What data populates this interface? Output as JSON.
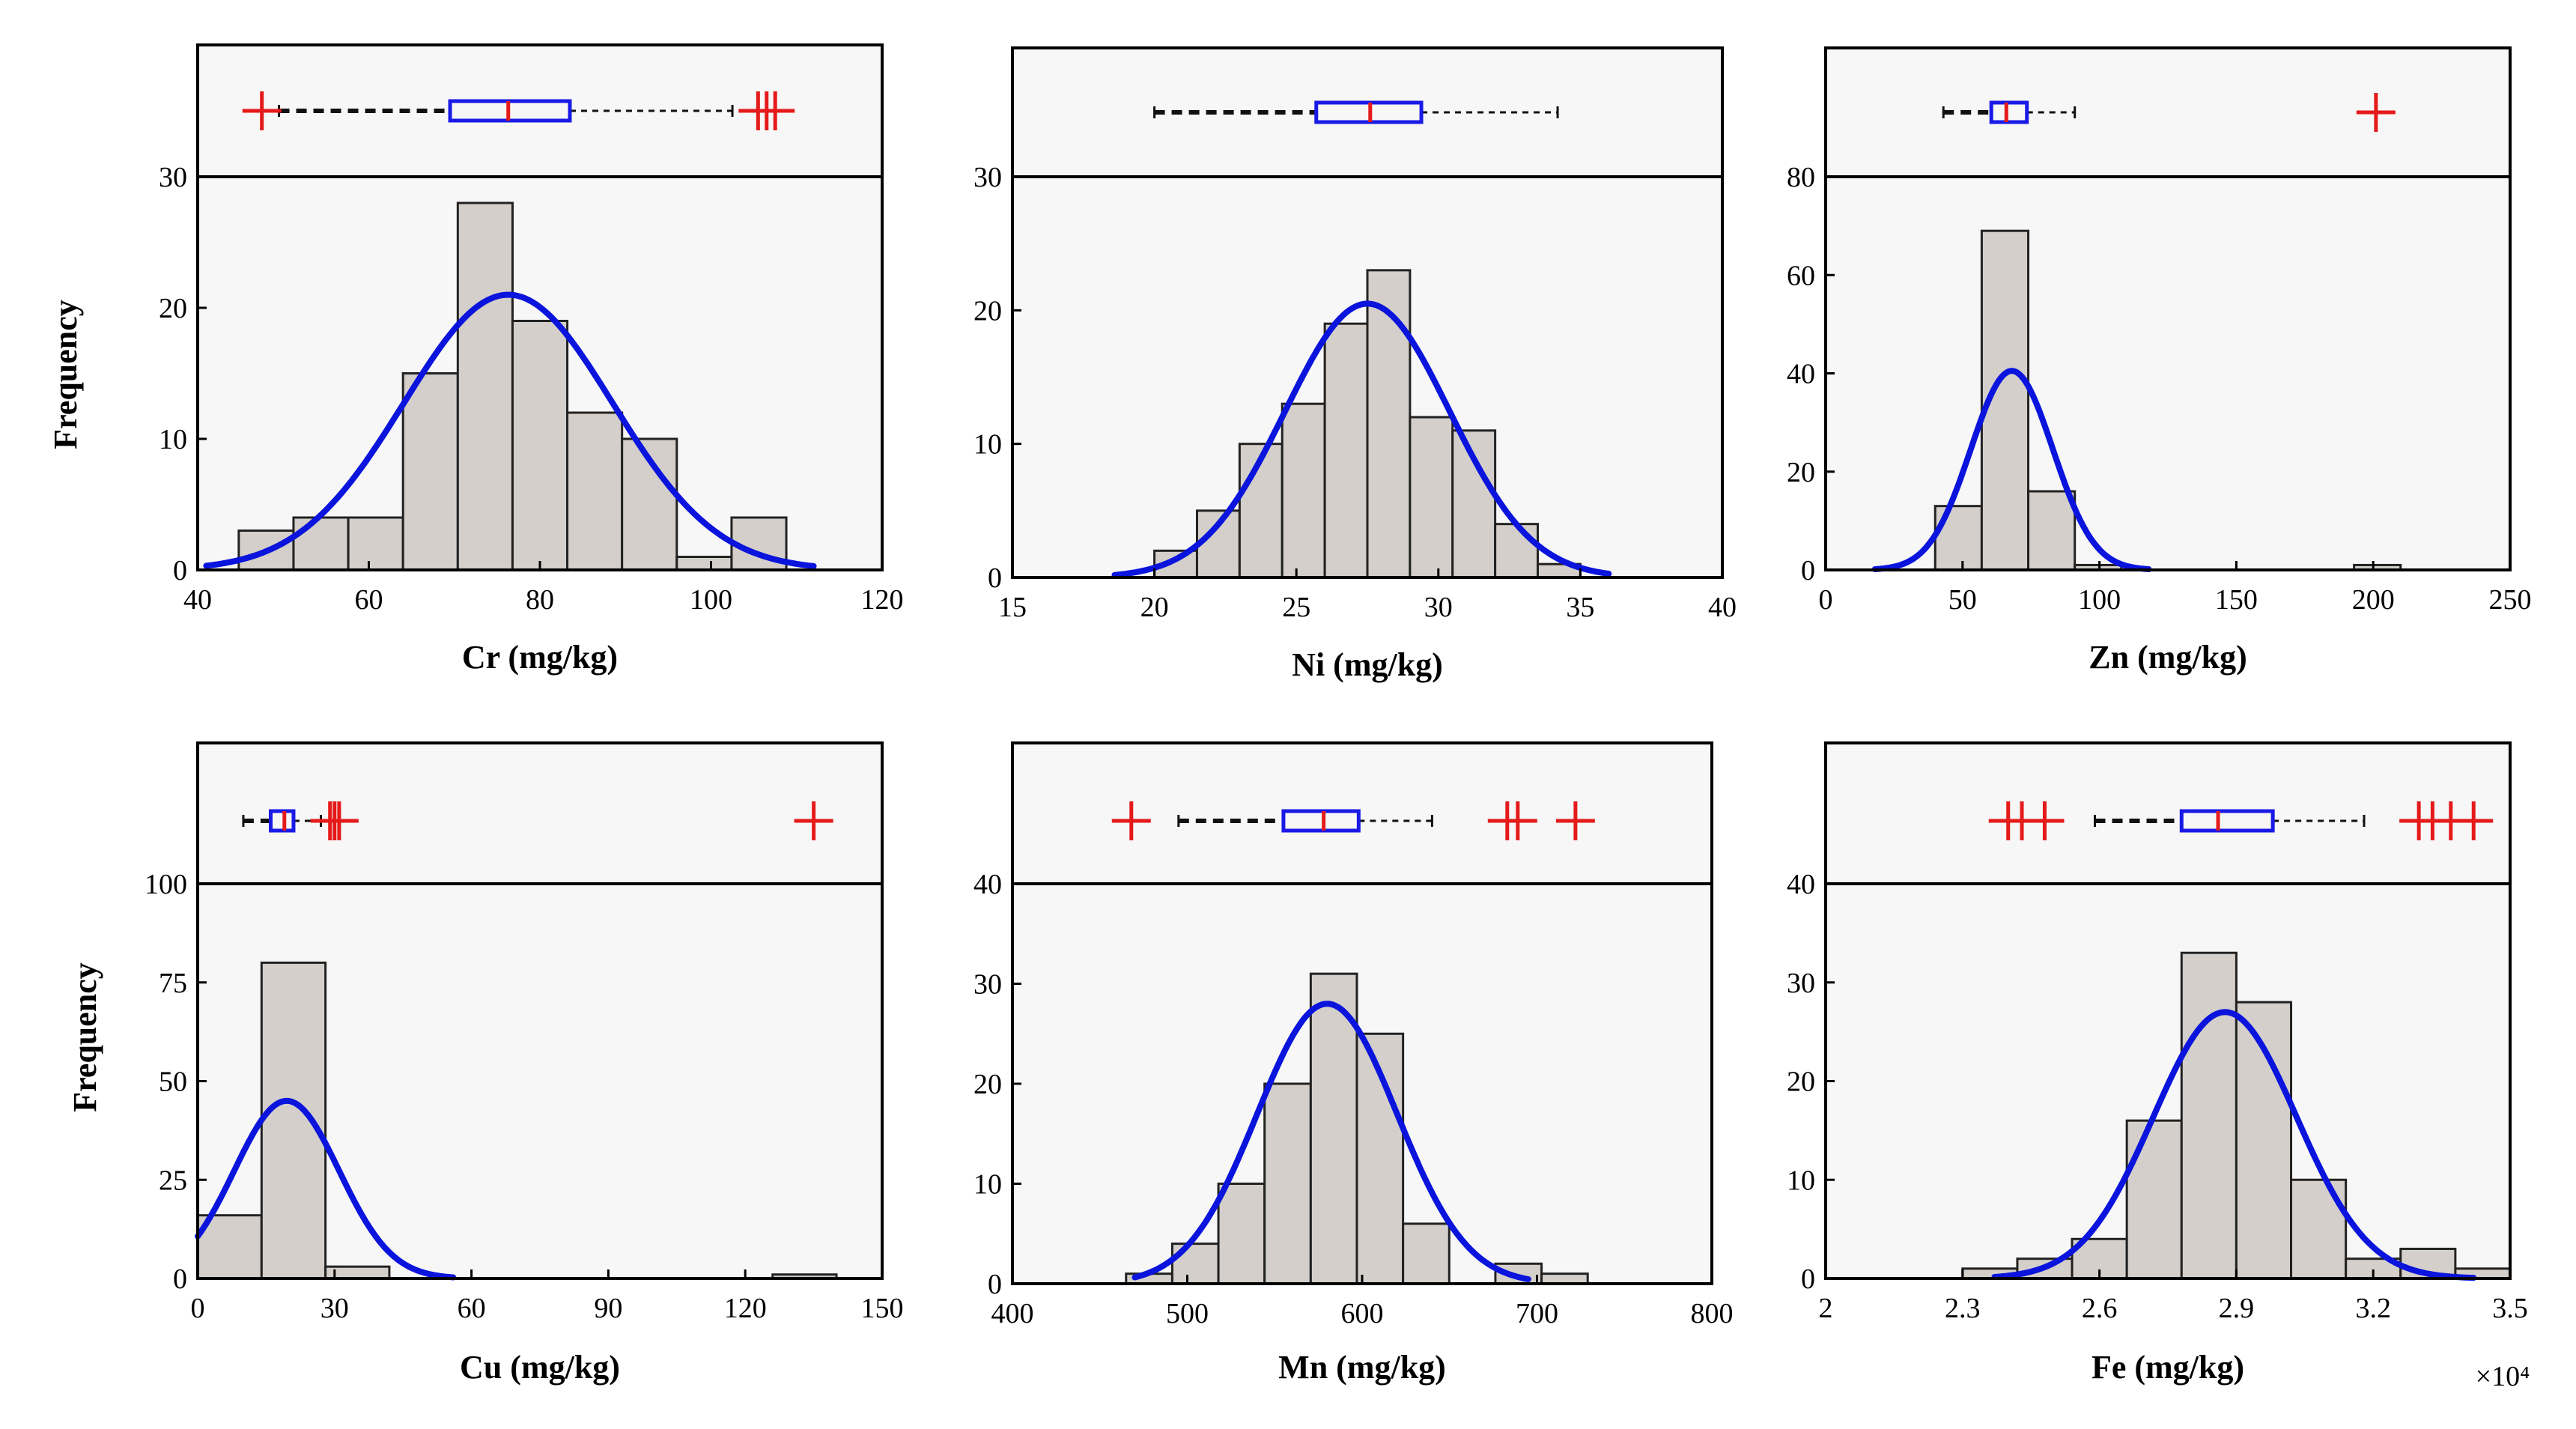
{
  "figure": {
    "y_axis_label": "Frequency",
    "exponent_note": "×10⁴"
  },
  "colors": {
    "bar_fill": "#d4cfca",
    "bar_edge": "#222222",
    "curve": "#0a14dc",
    "box": "#1a1ae6",
    "median": "#e51a1a",
    "outlier": "#e51a1a",
    "panel_bg": "#f7f7f7",
    "whisker": "#111111"
  },
  "chart_data": [
    {
      "type": "bar",
      "xlabel": "Cr (mg/kg)",
      "ylabel": "Frequency",
      "xlim": [
        40,
        120
      ],
      "ylim": [
        0,
        30
      ],
      "xticks": [
        40,
        60,
        80,
        100,
        120
      ],
      "xtick_labels": [
        "40",
        "60",
        "80",
        "100",
        "120"
      ],
      "yticks": [
        0,
        10,
        20,
        30
      ],
      "ytick_labels": [
        "0",
        "10",
        "20",
        "30"
      ],
      "bin_edges": [
        44.8,
        51.2,
        57.6,
        64.0,
        70.4,
        76.8,
        83.2,
        89.6,
        96.0,
        102.4,
        108.8
      ],
      "counts": [
        3,
        4,
        4,
        15,
        28,
        19,
        12,
        10,
        1,
        4
      ],
      "normal_fit": {
        "mean": 76.3,
        "sd": 12.2,
        "peak": 21,
        "range": [
          41,
          112
        ]
      },
      "boxplot": {
        "q1": 69.5,
        "median": 76.3,
        "q3": 83.5,
        "whisker_low": 49.5,
        "whisker_high": 102.5,
        "outliers": [
          47.5,
          105.5,
          106.5,
          107.5
        ]
      }
    },
    {
      "type": "bar",
      "xlabel": "Ni (mg/kg)",
      "ylabel": "Frequency",
      "xlim": [
        15,
        40
      ],
      "ylim": [
        0,
        30
      ],
      "xticks": [
        15,
        20,
        25,
        30,
        35,
        40
      ],
      "xtick_labels": [
        "15",
        "20",
        "25",
        "30",
        "35",
        "40"
      ],
      "yticks": [
        0,
        10,
        20,
        30
      ],
      "ytick_labels": [
        "0",
        "10",
        "20",
        "30"
      ],
      "bin_edges": [
        20.0,
        21.5,
        23.0,
        24.5,
        26.0,
        27.5,
        29.0,
        30.5,
        32.0,
        33.5,
        35.0
      ],
      "counts": [
        2,
        5,
        10,
        13,
        19,
        23,
        12,
        11,
        4,
        1
      ],
      "normal_fit": {
        "mean": 27.5,
        "sd": 2.9,
        "peak": 20.5,
        "range": [
          18.6,
          36.0
        ]
      },
      "boxplot": {
        "q1": 25.7,
        "median": 27.6,
        "q3": 29.4,
        "whisker_low": 20.0,
        "whisker_high": 34.2,
        "outliers": []
      }
    },
    {
      "type": "bar",
      "xlabel": "Zn (mg/kg)",
      "ylabel": "Frequency",
      "xlim": [
        0,
        250
      ],
      "ylim": [
        0,
        80
      ],
      "xticks": [
        0,
        50,
        100,
        150,
        200,
        250
      ],
      "xtick_labels": [
        "0",
        "50",
        "100",
        "150",
        "200",
        "250"
      ],
      "yticks": [
        0,
        20,
        40,
        60,
        80
      ],
      "ytick_labels": [
        "0",
        "20",
        "40",
        "60",
        "80"
      ],
      "bin_edges": [
        40,
        57,
        74,
        91,
        108,
        125,
        142,
        159,
        176,
        193,
        210
      ],
      "counts": [
        13,
        69,
        16,
        1,
        0,
        0,
        0,
        0,
        0,
        1
      ],
      "normal_fit": {
        "mean": 68,
        "sd": 15,
        "peak": 40.5,
        "range": [
          18,
          118
        ]
      },
      "boxplot": {
        "q1": 60.5,
        "median": 66,
        "q3": 73.5,
        "whisker_low": 43,
        "whisker_high": 91,
        "outliers": [
          201
        ]
      }
    },
    {
      "type": "bar",
      "xlabel": "Cu (mg/kg)",
      "ylabel": "Frequency",
      "xlim": [
        0,
        150
      ],
      "ylim": [
        0,
        100
      ],
      "xticks": [
        0,
        30,
        60,
        90,
        120,
        150
      ],
      "xtick_labels": [
        "0",
        "30",
        "60",
        "90",
        "120",
        "150"
      ],
      "yticks": [
        0,
        25,
        50,
        75,
        100
      ],
      "ytick_labels": [
        "0",
        "25",
        "50",
        "75",
        "100"
      ],
      "bin_edges": [
        0,
        14,
        28,
        42,
        56,
        70,
        84,
        98,
        112,
        126,
        140
      ],
      "counts": [
        16,
        80,
        3,
        0,
        0,
        0,
        0,
        0,
        0,
        1
      ],
      "normal_fit": {
        "mean": 19.5,
        "sd": 11.5,
        "peak": 45,
        "range": [
          0,
          56
        ]
      },
      "boxplot": {
        "q1": 16,
        "median": 19,
        "q3": 21,
        "whisker_low": 10,
        "whisker_high": 27,
        "outliers": [
          29,
          30,
          31,
          135
        ]
      }
    },
    {
      "type": "bar",
      "xlabel": "Mn (mg/kg)",
      "ylabel": "Frequency",
      "xlim": [
        400,
        800
      ],
      "ylim": [
        0,
        40
      ],
      "xticks": [
        400,
        500,
        600,
        700,
        800
      ],
      "xtick_labels": [
        "400",
        "500",
        "600",
        "700",
        "800"
      ],
      "yticks": [
        0,
        10,
        20,
        30,
        40
      ],
      "ytick_labels": [
        "0",
        "10",
        "20",
        "30",
        "40"
      ],
      "bin_edges": [
        465,
        491.4,
        517.8,
        544.2,
        570.6,
        597,
        623.4,
        649.8,
        676.2,
        702.6,
        729
      ],
      "counts": [
        1,
        4,
        10,
        20,
        31,
        25,
        6,
        0,
        2,
        1
      ],
      "normal_fit": {
        "mean": 580,
        "sd": 40,
        "peak": 28,
        "range": [
          470,
          695
        ]
      },
      "boxplot": {
        "q1": 555,
        "median": 578,
        "q3": 598,
        "whisker_low": 495,
        "whisker_high": 640,
        "outliers": [
          468,
          683,
          689,
          722
        ]
      }
    },
    {
      "type": "bar",
      "xlabel": "Fe (mg/kg)",
      "ylabel": "Frequency",
      "xlim": [
        2.0,
        3.5
      ],
      "ylim": [
        0,
        40
      ],
      "xticks": [
        2.0,
        2.3,
        2.6,
        2.9,
        3.2,
        3.5
      ],
      "xtick_labels": [
        "2",
        "2.3",
        "2.6",
        "2.9",
        "3.2",
        "3.5"
      ],
      "x_multiplier": "×10⁴",
      "yticks": [
        0,
        10,
        20,
        30,
        40
      ],
      "ytick_labels": [
        "0",
        "10",
        "20",
        "30",
        "40"
      ],
      "bin_edges": [
        2.3,
        2.42,
        2.54,
        2.66,
        2.78,
        2.9,
        3.02,
        3.14,
        3.26,
        3.38,
        3.5
      ],
      "counts": [
        1,
        2,
        4,
        16,
        33,
        28,
        10,
        2,
        3,
        1
      ],
      "normal_fit": {
        "mean": 2.875,
        "sd": 0.157,
        "peak": 27,
        "range": [
          2.37,
          3.42
        ]
      },
      "boxplot": {
        "q1": 2.78,
        "median": 2.86,
        "q3": 2.98,
        "whisker_low": 2.59,
        "whisker_high": 3.18,
        "outliers": [
          2.4,
          2.43,
          2.48,
          3.3,
          3.33,
          3.37,
          3.42
        ]
      }
    }
  ]
}
